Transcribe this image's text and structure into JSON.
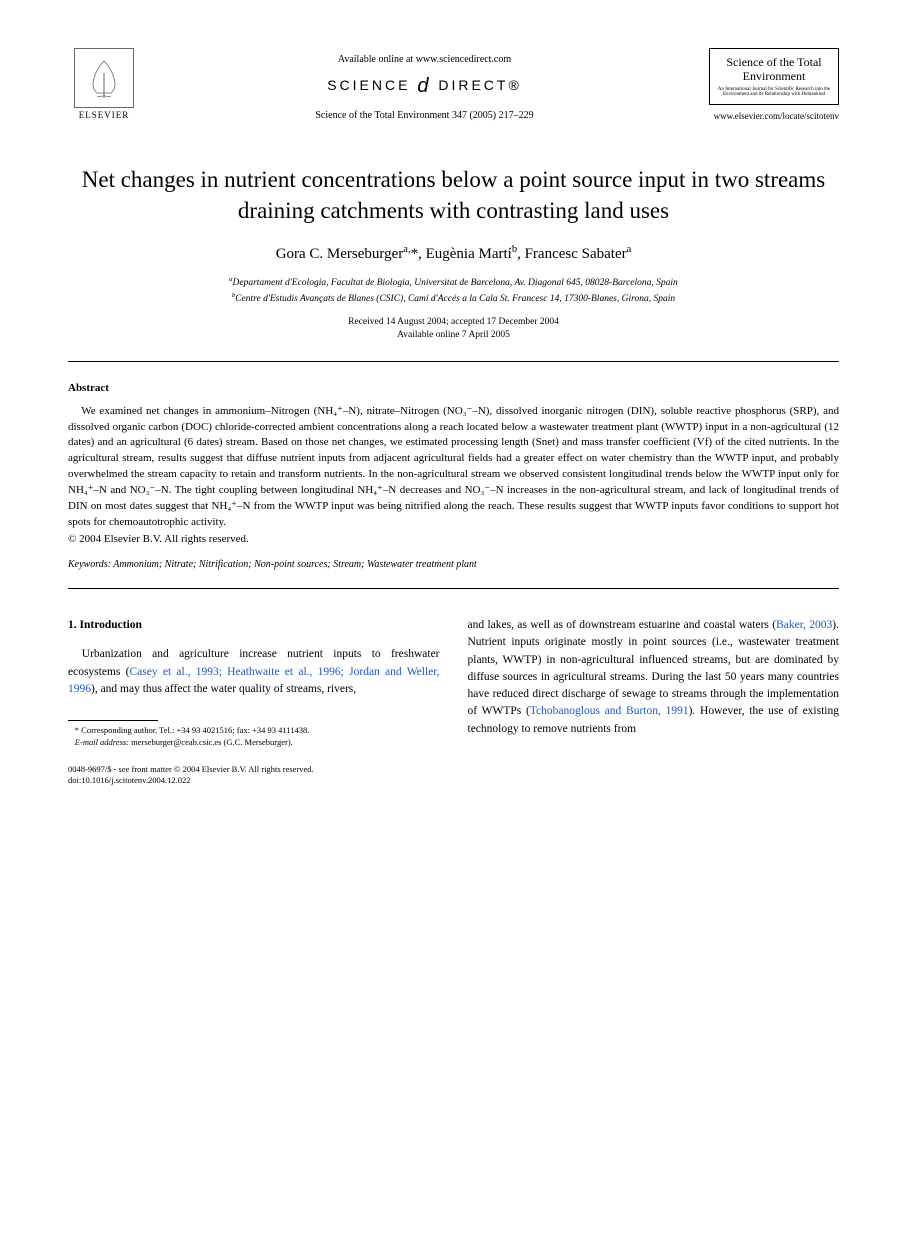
{
  "header": {
    "publisher": "ELSEVIER",
    "available_online": "Available online at www.sciencedirect.com",
    "science_direct": "SCIENCE",
    "science_direct2": "DIRECT®",
    "journal_ref": "Science of the Total Environment 347 (2005) 217–229",
    "journal_box_name": "Science of the Total Environment",
    "journal_box_sub": "An International Journal for Scientific Research into the Environment and its Relationship with Humankind",
    "journal_url": "www.elsevier.com/locate/scitotenv"
  },
  "title": "Net changes in nutrient concentrations below a point source input in two streams draining catchments with contrasting land uses",
  "authors_html": "Gora C. Merseburger<sup>a,</sup>*, Eugènia Martí<sup>b</sup>, Francesc Sabater<sup>a</sup>",
  "affiliations": {
    "a": "Departament d'Ecologia, Facultat de Biologia, Universitat de Barcelona, Av. Diagonal 645, 08028-Barcelona, Spain",
    "b": "Centre d'Estudis Avançats de Blanes (CSIC), Camí d'Accés a la Cala St. Francesc 14, 17300-Blanes, Girona, Spain"
  },
  "dates": {
    "received": "Received 14 August 2004; accepted 17 December 2004",
    "online": "Available online 7 April 2005"
  },
  "abstract": {
    "heading": "Abstract",
    "body": "We examined net changes in ammonium–Nitrogen (NH₄⁺–N), nitrate–Nitrogen (NO₃⁻–N), dissolved inorganic nitrogen (DIN), soluble reactive phosphorus (SRP), and dissolved organic carbon (DOC) chloride-corrected ambient concentrations along a reach located below a wastewater treatment plant (WWTP) input in a non-agricultural (12 dates) and an agricultural (6 dates) stream. Based on those net changes, we estimated processing length (Snet) and mass transfer coefficient (Vf) of the cited nutrients. In the agricultural stream, results suggest that diffuse nutrient inputs from adjacent agricultural fields had a greater effect on water chemistry than the WWTP input, and probably overwhelmed the stream capacity to retain and transform nutrients. In the non-agricultural stream we observed consistent longitudinal trends below the WWTP input only for NH₄⁺–N and NO₃⁻–N. The tight coupling between longitudinal NH₄⁺–N decreases and NO₃⁻–N increases in the non-agricultural stream, and lack of longitudinal trends of DIN on most dates suggest that NH₄⁺–N from the WWTP input was being nitrified along the reach. These results suggest that WWTP inputs favor conditions to support hot spots for chemoautotrophic activity.",
    "copyright": "© 2004 Elsevier B.V. All rights reserved."
  },
  "keywords": {
    "label": "Keywords:",
    "text": "Ammonium; Nitrate; Nitrification; Non-point sources; Stream; Wastewater treatment plant"
  },
  "section1": {
    "heading": "1. Introduction",
    "col1_para": "Urbanization and agriculture increase nutrient inputs to freshwater ecosystems (",
    "col1_ref1": "Casey et al., 1993; Heathwaite et al., 1996; Jordan and Weller, 1996",
    "col1_tail": "), and may thus affect the water quality of streams, rivers,",
    "col2_lead": "and lakes, as well as of downstream estuarine and coastal waters (",
    "col2_ref1": "Baker, 2003",
    "col2_mid": "). Nutrient inputs originate mostly in point sources (i.e., wastewater treatment plants, WWTP) in non-agricultural influenced streams, but are dominated by diffuse sources in agricultural streams. During the last 50 years many countries have reduced direct discharge of sewage to streams through the implementation of WWTPs (",
    "col2_ref2": "Tchobanoglous and Burton, 1991",
    "col2_tail": "). However, the use of existing technology to remove nutrients from"
  },
  "footnotes": {
    "corr": "* Corresponding author. Tel.: +34 93 4021516; fax: +34 93 4111438.",
    "email_label": "E-mail address:",
    "email": "merseburger@ceab.csic.es (G.C. Merseburger)."
  },
  "footer": {
    "line1": "0048-9697/$ - see front matter © 2004 Elsevier B.V. All rights reserved.",
    "line2": "doi:10.1016/j.scitotenv.2004.12.022"
  }
}
